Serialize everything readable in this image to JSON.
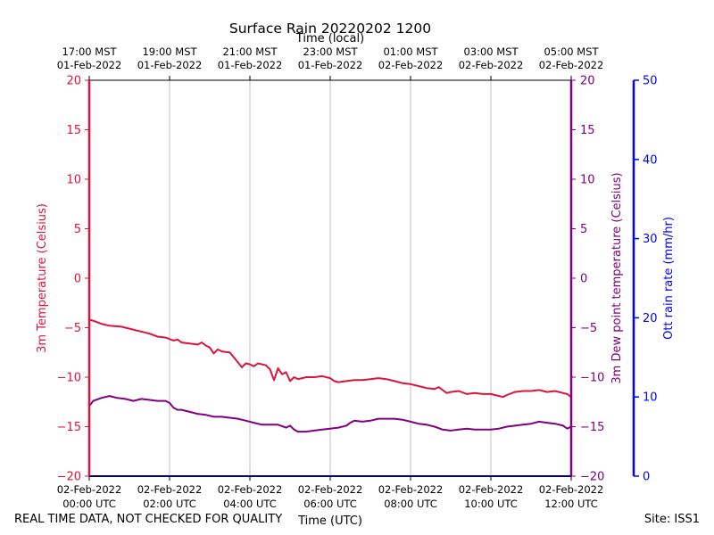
{
  "chart_data": {
    "type": "line",
    "title": "Surface Rain 20220202 1200",
    "top_axis_label": "Time (local)",
    "xlabel": "Time (UTC)",
    "xlim": [
      0,
      12
    ],
    "x_ticks": [
      0,
      2,
      4,
      6,
      8,
      10,
      12
    ],
    "x_tick_labels_utc": [
      [
        "02-Feb-2022",
        "00:00 UTC"
      ],
      [
        "02-Feb-2022",
        "02:00 UTC"
      ],
      [
        "02-Feb-2022",
        "04:00 UTC"
      ],
      [
        "02-Feb-2022",
        "06:00 UTC"
      ],
      [
        "02-Feb-2022",
        "08:00 UTC"
      ],
      [
        "02-Feb-2022",
        "10:00 UTC"
      ],
      [
        "02-Feb-2022",
        "12:00 UTC"
      ]
    ],
    "x_tick_labels_local": [
      [
        "17:00 MST",
        "01-Feb-2022"
      ],
      [
        "19:00 MST",
        "01-Feb-2022"
      ],
      [
        "21:00 MST",
        "01-Feb-2022"
      ],
      [
        "23:00 MST",
        "01-Feb-2022"
      ],
      [
        "01:00 MST",
        "02-Feb-2022"
      ],
      [
        "03:00 MST",
        "02-Feb-2022"
      ],
      [
        "05:00 MST",
        "02-Feb-2022"
      ]
    ],
    "ylabel_left": "3m Temperature (Celsius)",
    "ylabel_right": "3m Dew point temperature (Celsius)",
    "ylabel_rain": "Ott rain rate (mm/hr)",
    "ylim": [
      -20,
      20
    ],
    "y_ticks": [
      20,
      15,
      10,
      5,
      0,
      -5,
      -10,
      -15,
      -20
    ],
    "y_tick_labels": [
      "20",
      "15",
      "10",
      "5",
      "0",
      "−5",
      "−10",
      "−15",
      "−20"
    ],
    "rain_ylim": [
      0,
      50
    ],
    "rain_ticks": [
      0,
      10,
      20,
      30,
      40,
      50
    ],
    "rain_tick_labels": [
      "0",
      "10",
      "20",
      "30",
      "40",
      "50"
    ],
    "grid": "vertical",
    "series": [
      {
        "name": "3m Temperature",
        "color": "#dc143c",
        "x": [
          0,
          0.1,
          0.3,
          0.5,
          0.8,
          1.0,
          1.2,
          1.5,
          1.7,
          1.9,
          2.1,
          2.2,
          2.3,
          2.5,
          2.7,
          2.8,
          2.9,
          3.0,
          3.1,
          3.2,
          3.3,
          3.5,
          3.6,
          3.7,
          3.8,
          3.9,
          4.0,
          4.1,
          4.2,
          4.4,
          4.5,
          4.6,
          4.7,
          4.8,
          4.9,
          5.0,
          5.1,
          5.2,
          5.3,
          5.4,
          5.6,
          5.8,
          6.0,
          6.1,
          6.2,
          6.4,
          6.6,
          6.8,
          7.0,
          7.2,
          7.4,
          7.6,
          7.8,
          8.0,
          8.2,
          8.4,
          8.6,
          8.7,
          8.9,
          9.0,
          9.2,
          9.4,
          9.6,
          9.8,
          10.0,
          10.1,
          10.3,
          10.4,
          10.6,
          10.8,
          11.0,
          11.2,
          11.4,
          11.6,
          11.8,
          11.9,
          12.0
        ],
        "y": [
          -4.2,
          -4.3,
          -4.6,
          -4.8,
          -4.9,
          -5.1,
          -5.3,
          -5.6,
          -5.9,
          -6.0,
          -6.3,
          -6.2,
          -6.5,
          -6.6,
          -6.7,
          -6.5,
          -6.8,
          -7.0,
          -7.6,
          -7.2,
          -7.4,
          -7.5,
          -8.0,
          -8.5,
          -9.0,
          -8.6,
          -8.7,
          -8.9,
          -8.6,
          -8.8,
          -9.2,
          -10.3,
          -9.1,
          -9.7,
          -9.5,
          -10.4,
          -10.0,
          -10.2,
          -10.1,
          -10.0,
          -10.0,
          -9.9,
          -10.1,
          -10.4,
          -10.5,
          -10.4,
          -10.3,
          -10.3,
          -10.2,
          -10.1,
          -10.2,
          -10.4,
          -10.6,
          -10.7,
          -10.9,
          -11.1,
          -11.2,
          -11.0,
          -11.6,
          -11.5,
          -11.4,
          -11.7,
          -11.6,
          -11.7,
          -11.7,
          -11.8,
          -12.0,
          -11.8,
          -11.5,
          -11.4,
          -11.4,
          -11.3,
          -11.5,
          -11.4,
          -11.6,
          -11.7,
          -12.0
        ]
      },
      {
        "name": "3m Dew point temperature",
        "color": "#800080",
        "x": [
          0,
          0.1,
          0.3,
          0.5,
          0.7,
          0.9,
          1.1,
          1.3,
          1.5,
          1.7,
          1.9,
          2.0,
          2.1,
          2.2,
          2.3,
          2.5,
          2.7,
          2.9,
          3.1,
          3.3,
          3.5,
          3.7,
          3.9,
          4.1,
          4.3,
          4.5,
          4.7,
          4.9,
          5.0,
          5.1,
          5.2,
          5.4,
          5.6,
          5.8,
          6.0,
          6.2,
          6.4,
          6.5,
          6.6,
          6.8,
          7.0,
          7.2,
          7.4,
          7.6,
          7.8,
          8.0,
          8.2,
          8.4,
          8.6,
          8.8,
          9.0,
          9.2,
          9.4,
          9.6,
          9.8,
          10.0,
          10.2,
          10.4,
          10.6,
          10.8,
          11.0,
          11.2,
          11.4,
          11.6,
          11.8,
          11.9,
          12.0
        ],
        "y": [
          -12.9,
          -12.4,
          -12.1,
          -11.9,
          -12.1,
          -12.2,
          -12.4,
          -12.2,
          -12.3,
          -12.4,
          -12.4,
          -12.6,
          -13.1,
          -13.3,
          -13.3,
          -13.5,
          -13.7,
          -13.8,
          -14.0,
          -14.0,
          -14.1,
          -14.2,
          -14.4,
          -14.6,
          -14.8,
          -14.8,
          -14.8,
          -15.1,
          -14.9,
          -15.3,
          -15.5,
          -15.5,
          -15.4,
          -15.3,
          -15.2,
          -15.1,
          -14.9,
          -14.6,
          -14.4,
          -14.5,
          -14.4,
          -14.2,
          -14.2,
          -14.2,
          -14.3,
          -14.5,
          -14.7,
          -14.8,
          -15.0,
          -15.3,
          -15.4,
          -15.3,
          -15.2,
          -15.3,
          -15.3,
          -15.3,
          -15.2,
          -15.0,
          -14.9,
          -14.8,
          -14.7,
          -14.5,
          -14.6,
          -14.7,
          -14.9,
          -15.2,
          -15.0
        ]
      },
      {
        "name": "Ott rain rate",
        "color": "#0000ff",
        "axis": "rain",
        "x": [
          0,
          12
        ],
        "y": [
          0,
          0
        ]
      }
    ]
  },
  "footer": {
    "left_note": "REAL TIME DATA, NOT CHECKED FOR QUALITY",
    "site": "Site: ISS1"
  }
}
